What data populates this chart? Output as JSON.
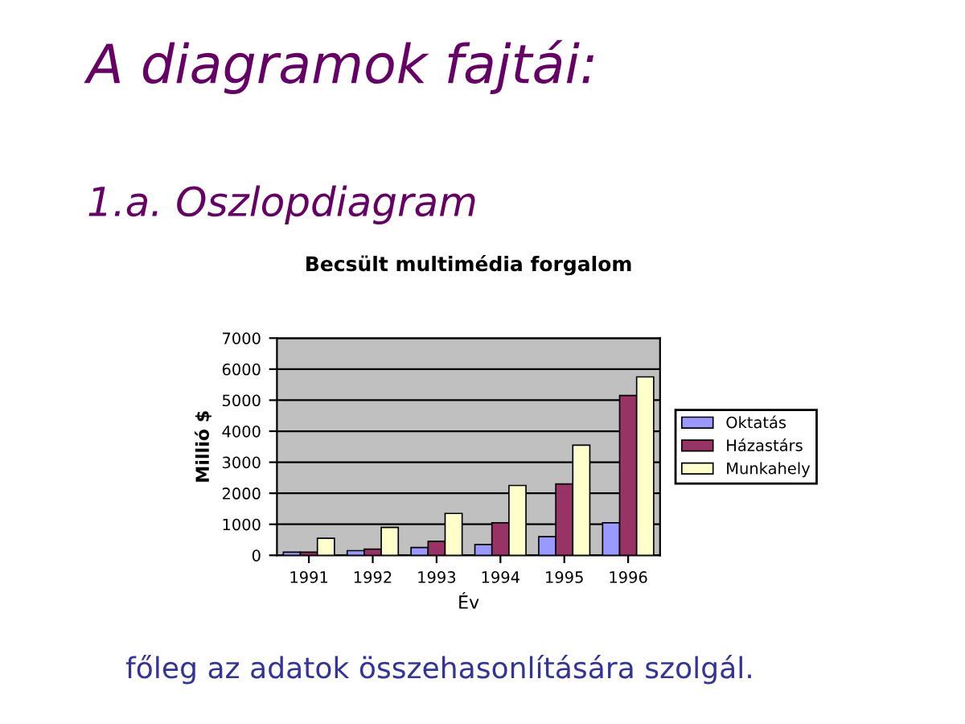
{
  "chart_data": {
    "type": "bar",
    "title": "Becsült multimédia forgalom",
    "xlabel": "Év",
    "ylabel": "Millió $",
    "annotations": [
      "A diagramok fajtái:",
      "1.a. Oszlopdiagram",
      "főleg az adatok összehasonlítására szolgál."
    ],
    "categories": [
      "1991",
      "1992",
      "1993",
      "1994",
      "1995",
      "1996"
    ],
    "series": [
      {
        "name": "Oktatás",
        "color": "#9999ff",
        "values": [
          100,
          150,
          250,
          350,
          600,
          1050
        ]
      },
      {
        "name": "Házastárs",
        "color": "#993366",
        "values": [
          100,
          200,
          450,
          1050,
          2300,
          5150
        ]
      },
      {
        "name": "Munkahely",
        "color": "#ffffcc",
        "values": [
          550,
          900,
          1350,
          2250,
          3550,
          5750
        ]
      }
    ],
    "ylim": [
      0,
      7000
    ],
    "yticks": [
      0,
      1000,
      2000,
      3000,
      4000,
      5000,
      6000,
      7000
    ],
    "grid": "y",
    "legend": "right"
  }
}
